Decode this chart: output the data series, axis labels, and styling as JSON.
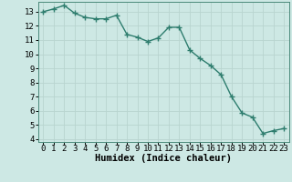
{
  "x": [
    0,
    1,
    2,
    3,
    4,
    5,
    6,
    7,
    8,
    9,
    10,
    11,
    12,
    13,
    14,
    15,
    16,
    17,
    18,
    19,
    20,
    21,
    22,
    23
  ],
  "y": [
    13.0,
    13.2,
    13.45,
    12.9,
    12.6,
    12.5,
    12.5,
    12.75,
    11.4,
    11.2,
    10.9,
    11.15,
    11.9,
    11.9,
    10.3,
    9.7,
    9.2,
    8.55,
    7.0,
    5.85,
    5.55,
    4.4,
    4.6,
    4.75
  ],
  "line_color": "#2e7d6e",
  "marker": "+",
  "marker_size": 4,
  "marker_linewidth": 1.0,
  "bg_color": "#cde8e4",
  "grid_color": "#b8d4cf",
  "xlabel": "Humidex (Indice chaleur)",
  "xlim": [
    -0.5,
    23.5
  ],
  "ylim": [
    3.8,
    13.7
  ],
  "yticks": [
    4,
    5,
    6,
    7,
    8,
    9,
    10,
    11,
    12,
    13
  ],
  "xticks": [
    0,
    1,
    2,
    3,
    4,
    5,
    6,
    7,
    8,
    9,
    10,
    11,
    12,
    13,
    14,
    15,
    16,
    17,
    18,
    19,
    20,
    21,
    22,
    23
  ],
  "tick_fontsize": 6.5,
  "xlabel_fontsize": 7.5,
  "linewidth": 1.0
}
